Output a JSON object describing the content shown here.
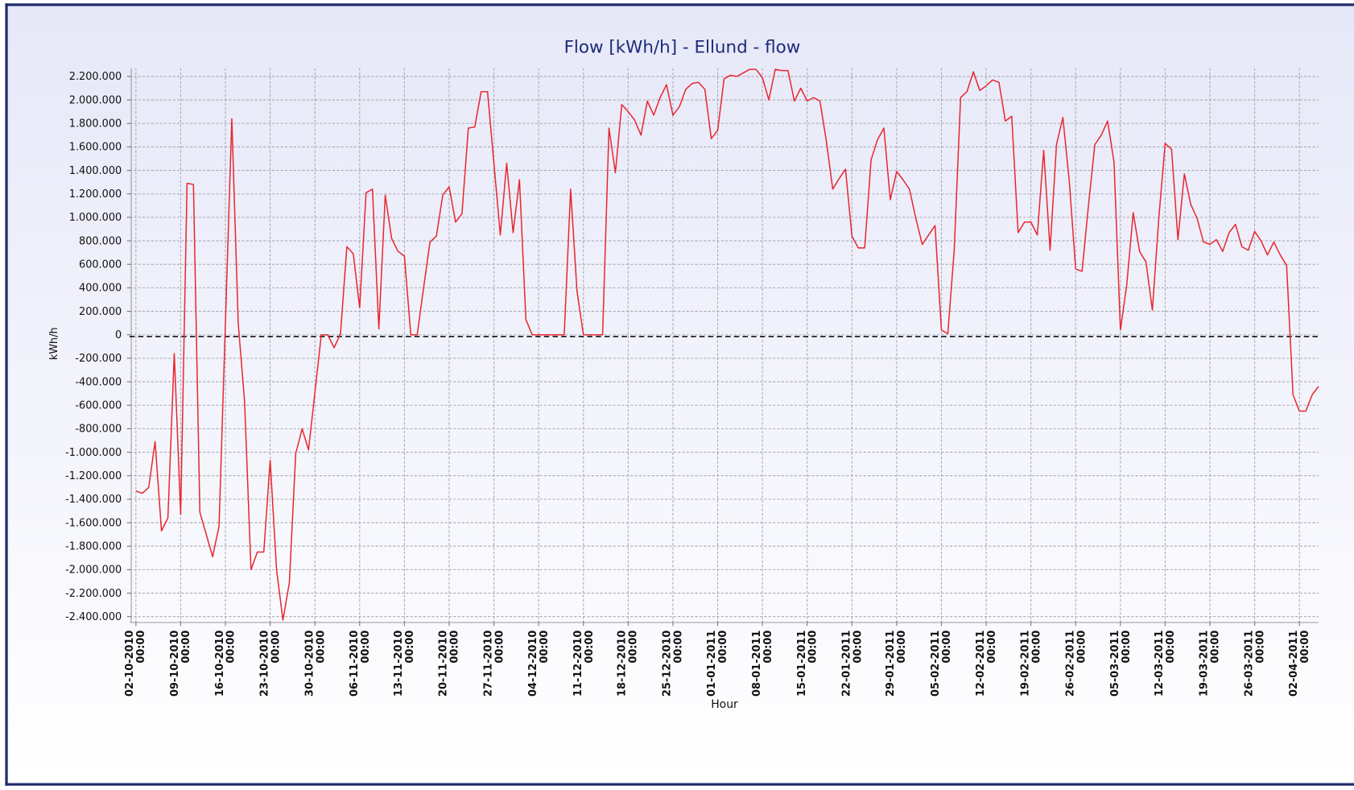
{
  "chart_data": {
    "type": "line",
    "title": "Flow [kWh/h] - Ellund - flow",
    "x_label": "Hour",
    "y_label": "kWh/h",
    "x": [
      "02-10-2010 00:00",
      "03-10-2010 00:00",
      "04-10-2010 00:00",
      "05-10-2010 00:00",
      "06-10-2010 00:00",
      "07-10-2010 00:00",
      "08-10-2010 00:00",
      "09-10-2010 00:00",
      "10-10-2010 00:00",
      "11-10-2010 00:00",
      "12-10-2010 00:00",
      "13-10-2010 00:00",
      "14-10-2010 00:00",
      "15-10-2010 00:00",
      "16-10-2010 00:00",
      "17-10-2010 00:00",
      "18-10-2010 00:00",
      "19-10-2010 00:00",
      "20-10-2010 00:00",
      "21-10-2010 00:00",
      "22-10-2010 00:00",
      "23-10-2010 00:00",
      "24-10-2010 00:00",
      "25-10-2010 00:00",
      "26-10-2010 00:00",
      "27-10-2010 00:00",
      "28-10-2010 00:00",
      "29-10-2010 00:00",
      "30-10-2010 00:00",
      "31-10-2010 00:00",
      "01-11-2010 00:00",
      "02-11-2010 00:00",
      "03-11-2010 00:00",
      "04-11-2010 00:00",
      "05-11-2010 00:00",
      "06-11-2010 00:00",
      "07-11-2010 00:00",
      "08-11-2010 00:00",
      "09-11-2010 00:00",
      "10-11-2010 00:00",
      "11-11-2010 00:00",
      "12-11-2010 00:00",
      "13-11-2010 00:00",
      "14-11-2010 00:00",
      "15-11-2010 00:00",
      "16-11-2010 00:00",
      "17-11-2010 00:00",
      "18-11-2010 00:00",
      "19-11-2010 00:00",
      "20-11-2010 00:00",
      "21-11-2010 00:00",
      "22-11-2010 00:00",
      "23-11-2010 00:00",
      "24-11-2010 00:00",
      "25-11-2010 00:00",
      "26-11-2010 00:00",
      "27-11-2010 00:00",
      "28-11-2010 00:00",
      "29-11-2010 00:00",
      "30-11-2010 00:00",
      "01-12-2010 00:00",
      "02-12-2010 00:00",
      "03-12-2010 00:00",
      "04-12-2010 00:00",
      "05-12-2010 00:00",
      "06-12-2010 00:00",
      "07-12-2010 00:00",
      "08-12-2010 00:00",
      "09-12-2010 00:00",
      "10-12-2010 00:00",
      "11-12-2010 00:00",
      "12-12-2010 00:00",
      "13-12-2010 00:00",
      "14-12-2010 00:00",
      "15-12-2010 00:00",
      "16-12-2010 00:00",
      "17-12-2010 00:00",
      "18-12-2010 00:00",
      "19-12-2010 00:00",
      "20-12-2010 00:00",
      "21-12-2010 00:00",
      "22-12-2010 00:00",
      "23-12-2010 00:00",
      "24-12-2010 00:00",
      "25-12-2010 00:00",
      "26-12-2010 00:00",
      "27-12-2010 00:00",
      "28-12-2010 00:00",
      "29-12-2010 00:00",
      "30-12-2010 00:00",
      "31-12-2010 00:00",
      "01-01-2011 00:00",
      "02-01-2011 00:00",
      "03-01-2011 00:00",
      "04-01-2011 00:00",
      "05-01-2011 00:00",
      "06-01-2011 00:00",
      "07-01-2011 00:00",
      "08-01-2011 00:00",
      "09-01-2011 00:00",
      "10-01-2011 00:00",
      "11-01-2011 00:00",
      "12-01-2011 00:00",
      "13-01-2011 00:00",
      "14-01-2011 00:00",
      "15-01-2011 00:00",
      "16-01-2011 00:00",
      "17-01-2011 00:00",
      "18-01-2011 00:00",
      "19-01-2011 00:00",
      "20-01-2011 00:00",
      "21-01-2011 00:00",
      "22-01-2011 00:00",
      "23-01-2011 00:00",
      "24-01-2011 00:00",
      "25-01-2011 00:00",
      "26-01-2011 00:00",
      "27-01-2011 00:00",
      "28-01-2011 00:00",
      "29-01-2011 00:00",
      "30-01-2011 00:00",
      "31-01-2011 00:00",
      "01-02-2011 00:00",
      "02-02-2011 00:00",
      "03-02-2011 00:00",
      "04-02-2011 00:00",
      "05-02-2011 00:00",
      "06-02-2011 00:00",
      "07-02-2011 00:00",
      "08-02-2011 00:00",
      "09-02-2011 00:00",
      "10-02-2011 00:00",
      "11-02-2011 00:00",
      "12-02-2011 00:00",
      "13-02-2011 00:00",
      "14-02-2011 00:00",
      "15-02-2011 00:00",
      "16-02-2011 00:00",
      "17-02-2011 00:00",
      "18-02-2011 00:00",
      "19-02-2011 00:00",
      "20-02-2011 00:00",
      "21-02-2011 00:00",
      "22-02-2011 00:00",
      "23-02-2011 00:00",
      "24-02-2011 00:00",
      "25-02-2011 00:00",
      "26-02-2011 00:00",
      "27-02-2011 00:00",
      "28-02-2011 00:00",
      "01-03-2011 00:00",
      "02-03-2011 00:00",
      "03-03-2011 00:00",
      "04-03-2011 00:00",
      "05-03-2011 00:00",
      "06-03-2011 00:00",
      "07-03-2011 00:00",
      "08-03-2011 00:00",
      "09-03-2011 00:00",
      "10-03-2011 00:00",
      "11-03-2011 00:00",
      "12-03-2011 00:00",
      "13-03-2011 00:00",
      "14-03-2011 00:00",
      "15-03-2011 00:00",
      "16-03-2011 00:00",
      "17-03-2011 00:00",
      "18-03-2011 00:00",
      "19-03-2011 00:00",
      "20-03-2011 00:00",
      "21-03-2011 00:00",
      "22-03-2011 00:00",
      "23-03-2011 00:00",
      "24-03-2011 00:00",
      "25-03-2011 00:00",
      "26-03-2011 00:00",
      "27-03-2011 00:00",
      "28-03-2011 00:00",
      "29-03-2011 00:00",
      "30-03-2011 00:00",
      "31-03-2011 00:00",
      "01-04-2011 00:00",
      "02-04-2011 00:00",
      "03-04-2011 00:00",
      "04-04-2011 00:00",
      "05-04-2011 00:00"
    ],
    "series": [
      {
        "name": "flow",
        "color": "#e8262e",
        "values": [
          -1330000,
          -1350000,
          -1300000,
          -910000,
          -1670000,
          -1560000,
          -160000,
          -1530000,
          1290000,
          1280000,
          -1510000,
          -1700000,
          -1890000,
          -1630000,
          100000,
          1840000,
          100000,
          -570000,
          -2000000,
          -1850000,
          -1850000,
          -1070000,
          -2000000,
          -2430000,
          -2110000,
          -1010000,
          -800000,
          -980000,
          -490000,
          0,
          0,
          -110000,
          10000,
          750000,
          690000,
          230000,
          1210000,
          1240000,
          50000,
          1190000,
          820000,
          710000,
          670000,
          0,
          0,
          400000,
          790000,
          840000,
          1190000,
          1260000,
          960000,
          1030000,
          1760000,
          1770000,
          2070000,
          2070000,
          1460000,
          850000,
          1460000,
          870000,
          1320000,
          130000,
          0,
          0,
          0,
          0,
          0,
          0,
          1240000,
          370000,
          0,
          0,
          0,
          0,
          1760000,
          1380000,
          1960000,
          1900000,
          1830000,
          1700000,
          1990000,
          1870000,
          2020000,
          2130000,
          1870000,
          1940000,
          2090000,
          2140000,
          2150000,
          2090000,
          1670000,
          1740000,
          2180000,
          2210000,
          2200000,
          2230000,
          2260000,
          2260000,
          2190000,
          2000000,
          2260000,
          2250000,
          2250000,
          1990000,
          2100000,
          1990000,
          2020000,
          1990000,
          1650000,
          1240000,
          1330000,
          1410000,
          840000,
          740000,
          740000,
          1490000,
          1660000,
          1760000,
          1150000,
          1390000,
          1320000,
          1240000,
          990000,
          770000,
          850000,
          930000,
          40000,
          10000,
          720000,
          2020000,
          2070000,
          2240000,
          2080000,
          2120000,
          2170000,
          2150000,
          1820000,
          1860000,
          870000,
          960000,
          960000,
          850000,
          1570000,
          720000,
          1620000,
          1850000,
          1310000,
          560000,
          540000,
          1100000,
          1620000,
          1700000,
          1820000,
          1470000,
          40000,
          430000,
          1040000,
          710000,
          620000,
          210000,
          990000,
          1630000,
          1580000,
          810000,
          1370000,
          1110000,
          990000,
          790000,
          770000,
          810000,
          710000,
          870000,
          940000,
          750000,
          720000,
          880000,
          800000,
          680000,
          790000,
          680000,
          590000,
          -510000,
          -650000,
          -650000,
          -510000,
          -440000
        ]
      }
    ],
    "xlim": [
      "01-10-2010 00:00",
      "05-04-2011 00:00"
    ],
    "xticks": [
      "02-10-2010 00:00",
      "09-10-2010 00:00",
      "16-10-2010 00:00",
      "23-10-2010 00:00",
      "30-10-2010 00:00",
      "06-11-2010 00:00",
      "13-11-2010 00:00",
      "20-11-2010 00:00",
      "27-11-2010 00:00",
      "04-12-2010 00:00",
      "11-12-2010 00:00",
      "18-12-2010 00:00",
      "25-12-2010 00:00",
      "01-01-2011 00:00",
      "08-01-2011 00:00",
      "15-01-2011 00:00",
      "22-01-2011 00:00",
      "29-01-2011 00:00",
      "05-02-2011 00:00",
      "12-02-2011 00:00",
      "19-02-2011 00:00",
      "26-02-2011 00:00",
      "05-03-2011 00:00",
      "12-03-2011 00:00",
      "19-03-2011 00:00",
      "26-03-2011 00:00",
      "02-04-2011 00:00"
    ],
    "ylim": [
      -2450000,
      2270000
    ],
    "yticks": [
      {
        "value": 2200000,
        "label": "2.200.000"
      },
      {
        "value": 2000000,
        "label": "2.000.000"
      },
      {
        "value": 1800000,
        "label": "1.800.000"
      },
      {
        "value": 1600000,
        "label": "1.600.000"
      },
      {
        "value": 1400000,
        "label": "1.400.000"
      },
      {
        "value": 1200000,
        "label": "1.200.000"
      },
      {
        "value": 1000000,
        "label": "1.000.000"
      },
      {
        "value": 800000,
        "label": "800.000"
      },
      {
        "value": 600000,
        "label": "600.000"
      },
      {
        "value": 400000,
        "label": "400.000"
      },
      {
        "value": 200000,
        "label": "200.000"
      },
      0,
      {
        "value": -200000,
        "label": "-200.000"
      },
      {
        "value": -400000,
        "label": "-400.000"
      },
      {
        "value": -600000,
        "label": "-600.000"
      },
      {
        "value": -800000,
        "label": "-800.000"
      },
      {
        "value": -1000000,
        "label": "-1.000.000"
      },
      {
        "value": -1200000,
        "label": "-1.200.000"
      },
      {
        "value": -1400000,
        "label": "-1.400.000"
      },
      {
        "value": -1600000,
        "label": "-1.600.000"
      },
      {
        "value": -1800000,
        "label": "-1.800.000"
      },
      {
        "value": -2000000,
        "label": "-2.000.000"
      },
      {
        "value": -2200000,
        "label": "-2.200.000"
      },
      {
        "value": -2400000,
        "label": "-2.400.000"
      }
    ],
    "grid": true,
    "zero_line": true
  }
}
